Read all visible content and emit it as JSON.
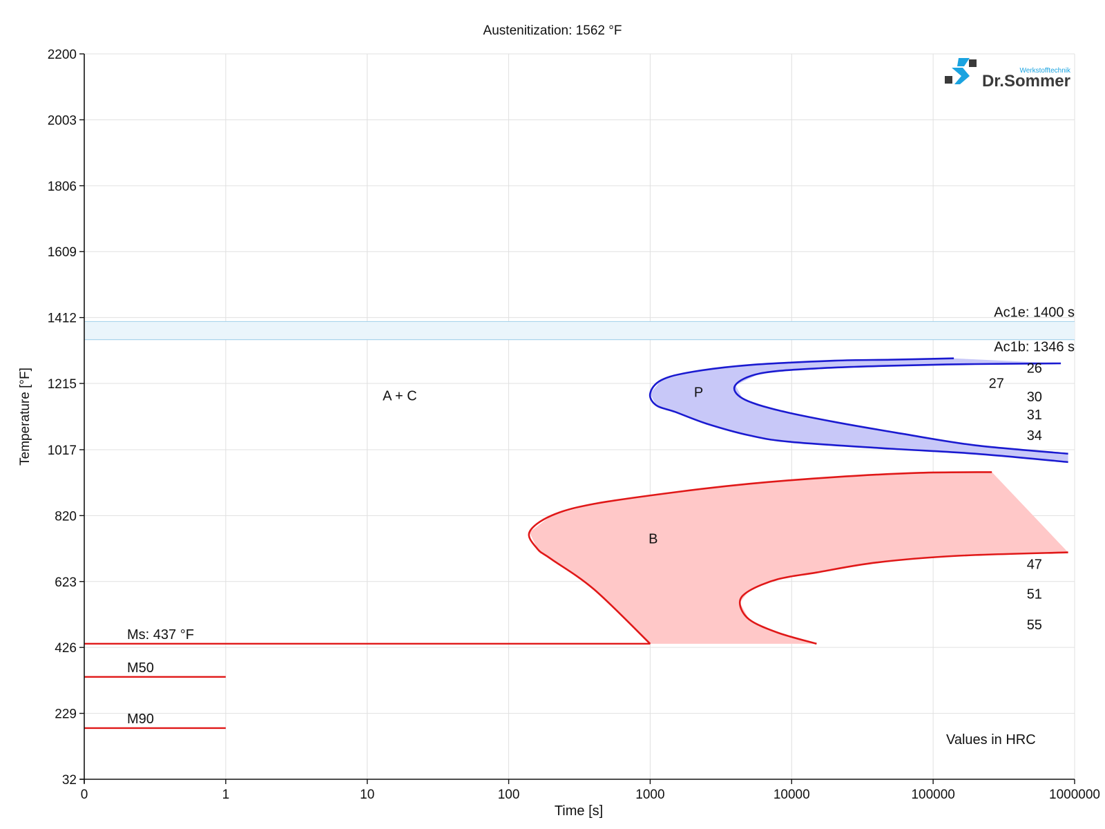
{
  "chart_data": {
    "type": "area",
    "title": "Austenitization: 1562 °F",
    "xlabel": "Time [s]",
    "ylabel": "Temperature [°F]",
    "x_scale": "log",
    "xlim": [
      0,
      1000000
    ],
    "ylim": [
      32,
      2200
    ],
    "x_ticks": [
      {
        "value": 0.1,
        "label": "0"
      },
      {
        "value": 1,
        "label": "1"
      },
      {
        "value": 10,
        "label": "10"
      },
      {
        "value": 100,
        "label": "100"
      },
      {
        "value": 1000,
        "label": "1000"
      },
      {
        "value": 10000,
        "label": "10000"
      },
      {
        "value": 100000,
        "label": "100000"
      },
      {
        "value": 1000000,
        "label": "1000000"
      }
    ],
    "y_ticks": [
      "32",
      "229",
      "426",
      "623",
      "820",
      "1017",
      "1215",
      "1412",
      "1609",
      "1806",
      "2003",
      "2200"
    ],
    "grid": true,
    "colors": {
      "pearlite": "#1a1ad0",
      "pearlite_fill": "#c8c8f8",
      "bainite": "#e01818",
      "bainite_fill": "#ffc8c8",
      "ac_band": "#eaf5fb",
      "ac_line": "#a9d4ec",
      "grid": "#e0e0e0"
    },
    "ac_band": [
      {
        "name": "Ac1e",
        "y": 1400,
        "label": "Ac1e: 1400 s"
      },
      {
        "name": "Ac1b",
        "y": 1346,
        "label": "Ac1b: 1346 s"
      }
    ],
    "martensite_lines": [
      {
        "label": "Ms: 437 °F",
        "y": 437,
        "x_start": 0.1,
        "x_end": 1000
      },
      {
        "label": "M50",
        "y": 338,
        "x_start": 0.1,
        "x_end": 1
      },
      {
        "label": "M90",
        "y": 185,
        "x_start": 0.1,
        "x_end": 1
      }
    ],
    "regions": [
      {
        "label": "P",
        "label_pos": [
          2200,
          1175
        ],
        "start": [
          [
            140000,
            1290
          ],
          [
            50000,
            1286
          ],
          [
            20000,
            1283
          ],
          [
            5000,
            1270
          ],
          [
            2000,
            1250
          ],
          [
            1200,
            1225
          ],
          [
            1000,
            1185
          ],
          [
            1100,
            1150
          ],
          [
            1500,
            1130
          ],
          [
            2500,
            1095
          ],
          [
            5000,
            1060
          ],
          [
            10000,
            1040
          ],
          [
            50000,
            1020
          ],
          [
            200000,
            1005
          ],
          [
            900000,
            980
          ]
        ],
        "finish": [
          [
            800000,
            1275
          ],
          [
            200000,
            1273
          ],
          [
            50000,
            1268
          ],
          [
            15000,
            1260
          ],
          [
            6000,
            1245
          ],
          [
            4000,
            1210
          ],
          [
            4500,
            1170
          ],
          [
            8000,
            1135
          ],
          [
            20000,
            1100
          ],
          [
            60000,
            1065
          ],
          [
            200000,
            1030
          ],
          [
            900000,
            1005
          ]
        ]
      },
      {
        "label": "B",
        "label_pos": [
          1050,
          737
        ],
        "start": [
          [
            260000,
            950
          ],
          [
            80000,
            948
          ],
          [
            20000,
            935
          ],
          [
            5000,
            915
          ],
          [
            1500,
            890
          ],
          [
            400,
            855
          ],
          [
            200,
            820
          ],
          [
            140,
            770
          ],
          [
            160,
            720
          ],
          [
            200,
            690
          ],
          [
            400,
            600
          ],
          [
            1000,
            437
          ]
        ],
        "finish": [
          [
            15000,
            437
          ],
          [
            8000,
            470
          ],
          [
            5000,
            510
          ],
          [
            4300,
            560
          ],
          [
            5000,
            595
          ],
          [
            8000,
            630
          ],
          [
            15000,
            650
          ],
          [
            40000,
            680
          ],
          [
            150000,
            700
          ],
          [
            900000,
            710
          ]
        ]
      }
    ],
    "region_labels": [
      {
        "text": "A + C",
        "x": 17,
        "y": 1165
      }
    ],
    "hardness_values": [
      {
        "text": "26",
        "x": 520000,
        "y": 1262
      },
      {
        "text": "27",
        "x": 280000,
        "y": 1216
      },
      {
        "text": "30",
        "x": 520000,
        "y": 1176
      },
      {
        "text": "31",
        "x": 520000,
        "y": 1122
      },
      {
        "text": "34",
        "x": 520000,
        "y": 1060
      },
      {
        "text": "47",
        "x": 520000,
        "y": 675
      },
      {
        "text": "51",
        "x": 520000,
        "y": 586
      },
      {
        "text": "55",
        "x": 520000,
        "y": 495
      }
    ],
    "values_note": "Values in HRC"
  },
  "logo": {
    "brand": "Dr.Sommer",
    "tagline": "Werkstofftechnik",
    "colors": {
      "blue": "#1aa3e0",
      "dark": "#3a3a3a"
    }
  }
}
